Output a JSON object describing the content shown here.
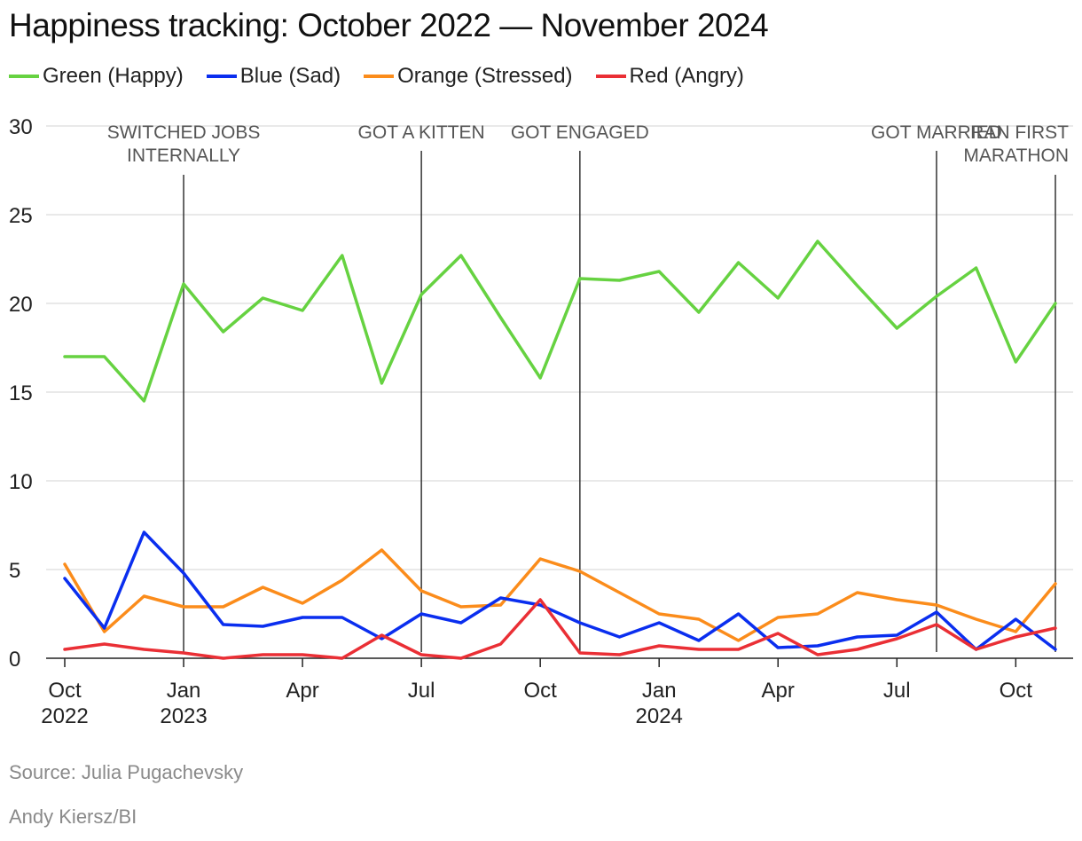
{
  "title": "Happiness tracking: October 2022 — November 2024",
  "source": "Source: Julia Pugachevsky",
  "credit": "Andy Kiersz/BI",
  "chart_data": {
    "type": "line",
    "title": "Happiness tracking: October 2022 — November 2024",
    "xlabel": "",
    "ylabel": "",
    "ylim": [
      0,
      30
    ],
    "yticks": [
      0,
      5,
      10,
      15,
      20,
      25,
      30
    ],
    "grid": true,
    "legend_position": "top-left",
    "x": [
      "2022-10",
      "2022-11",
      "2022-12",
      "2023-01",
      "2023-02",
      "2023-03",
      "2023-04",
      "2023-05",
      "2023-06",
      "2023-07",
      "2023-08",
      "2023-09",
      "2023-10",
      "2023-11",
      "2023-12",
      "2024-01",
      "2024-02",
      "2024-03",
      "2024-04",
      "2024-05",
      "2024-06",
      "2024-07",
      "2024-08",
      "2024-09",
      "2024-10",
      "2024-11"
    ],
    "xticks": [
      {
        "index": 0,
        "lines": [
          "Oct",
          "2022"
        ]
      },
      {
        "index": 3,
        "lines": [
          "Jan",
          "2023"
        ]
      },
      {
        "index": 6,
        "lines": [
          "Apr"
        ]
      },
      {
        "index": 9,
        "lines": [
          "Jul"
        ]
      },
      {
        "index": 12,
        "lines": [
          "Oct"
        ]
      },
      {
        "index": 15,
        "lines": [
          "Jan",
          "2024"
        ]
      },
      {
        "index": 18,
        "lines": [
          "Apr"
        ]
      },
      {
        "index": 21,
        "lines": [
          "Jul"
        ]
      },
      {
        "index": 24,
        "lines": [
          "Oct"
        ]
      }
    ],
    "series": [
      {
        "name": "Green (Happy)",
        "color": "#66d241",
        "values": [
          17.0,
          17.0,
          14.5,
          21.1,
          18.4,
          20.3,
          19.6,
          22.7,
          15.5,
          20.5,
          22.7,
          19.2,
          15.8,
          21.4,
          21.3,
          21.8,
          19.5,
          22.3,
          20.3,
          23.5,
          21.0,
          18.6,
          20.4,
          22.0,
          16.7,
          20.0
        ]
      },
      {
        "name": "Blue (Sad)",
        "color": "#0a2eef",
        "values": [
          4.5,
          1.7,
          7.1,
          4.8,
          1.9,
          1.8,
          2.3,
          2.3,
          1.1,
          2.5,
          2.0,
          3.4,
          3.0,
          2.0,
          1.2,
          2.0,
          1.0,
          2.5,
          0.6,
          0.7,
          1.2,
          1.3,
          2.6,
          0.5,
          2.2,
          0.5
        ]
      },
      {
        "name": "Orange (Stressed)",
        "color": "#fb8c1b",
        "values": [
          5.3,
          1.5,
          3.5,
          2.9,
          2.9,
          4.0,
          3.1,
          4.4,
          6.1,
          3.8,
          2.9,
          3.0,
          5.6,
          4.9,
          3.7,
          2.5,
          2.2,
          1.0,
          2.3,
          2.5,
          3.7,
          3.3,
          3.0,
          2.2,
          1.5,
          4.2
        ]
      },
      {
        "name": "Red (Angry)",
        "color": "#ea2f35",
        "values": [
          0.5,
          0.8,
          0.5,
          0.3,
          0.0,
          0.2,
          0.2,
          0.0,
          1.3,
          0.2,
          0.0,
          0.8,
          3.3,
          0.3,
          0.2,
          0.7,
          0.5,
          0.5,
          1.4,
          0.2,
          0.5,
          1.1,
          1.9,
          0.5,
          1.2,
          1.7
        ]
      }
    ],
    "annotations": [
      {
        "x_index": 3,
        "lines": [
          "SWITCHED JOBS",
          "INTERNALLY"
        ]
      },
      {
        "x_index": 9,
        "lines": [
          "GOT A KITTEN"
        ]
      },
      {
        "x_index": 13,
        "lines": [
          "GOT ENGAGED"
        ]
      },
      {
        "x_index": 22,
        "lines": [
          "GOT MARRIED"
        ]
      },
      {
        "x_index": 25,
        "lines": [
          "RAN FIRST",
          "MARATHON"
        ]
      }
    ]
  }
}
